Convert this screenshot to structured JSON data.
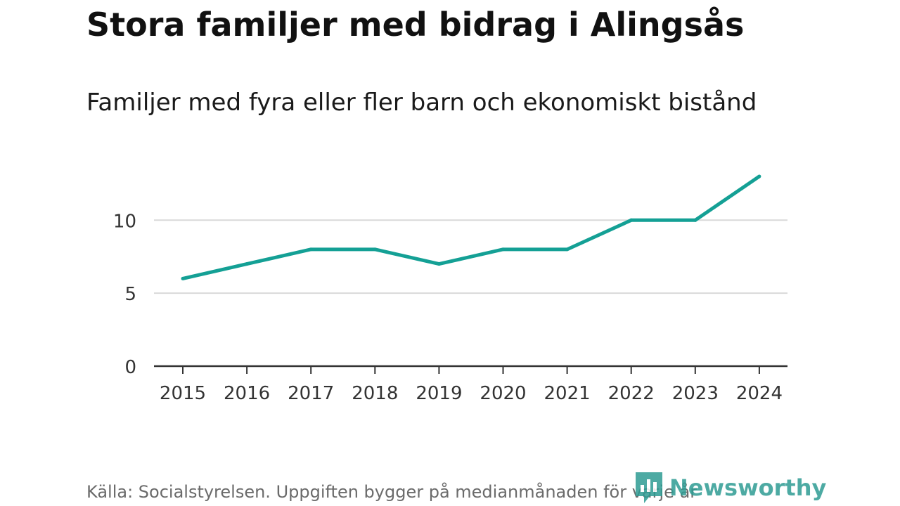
{
  "chart_data": {
    "type": "line",
    "title": "Stora familjer med bidrag i Alingsås",
    "subtitle": "Familjer med fyra eller fler barn och ekonomiskt bistånd",
    "xlabel": "",
    "ylabel": "",
    "categories": [
      "2015",
      "2016",
      "2017",
      "2018",
      "2019",
      "2020",
      "2021",
      "2022",
      "2023",
      "2024"
    ],
    "series": [
      {
        "values": [
          6,
          7,
          8,
          8,
          7,
          8,
          8,
          10,
          10,
          13
        ]
      }
    ],
    "ylim": [
      0,
      13
    ],
    "yticks": [
      0,
      5,
      10
    ],
    "grid": true,
    "legend": "none",
    "line_color": "#14a095",
    "source": "Källa: Socialstyrelsen. Uppgiften bygger på medianmånaden för varje år",
    "brand": "Newsworthy",
    "brand_icon": "bar-chart-bubble-icon",
    "brand_color": "#2f9c93"
  }
}
